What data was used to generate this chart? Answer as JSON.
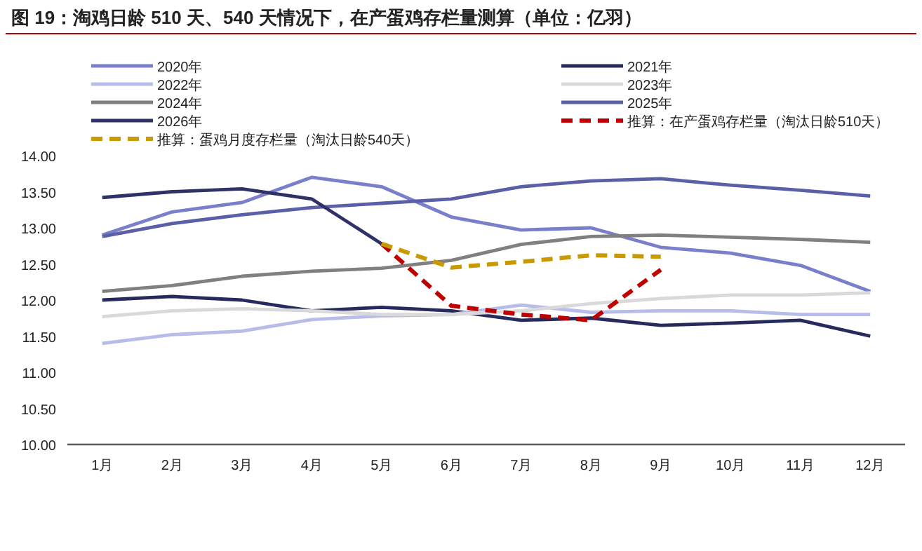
{
  "chart_data": {
    "type": "line",
    "title": "图 19：淘鸡日龄 510 天、540 天情况下，在产蛋鸡存栏量测算（单位：亿羽）",
    "categories": [
      "1月",
      "2月",
      "3月",
      "4月",
      "5月",
      "6月",
      "7月",
      "8月",
      "9月",
      "10月",
      "11月",
      "12月"
    ],
    "ylim": [
      10,
      14
    ],
    "yticks": [
      {
        "value": 10,
        "label": "10.00"
      },
      {
        "value": 10.5,
        "label": "10.50"
      },
      {
        "value": 11,
        "label": "11.00"
      },
      {
        "value": 11.5,
        "label": "11.50"
      },
      {
        "value": 12,
        "label": "12.00"
      },
      {
        "value": 12.5,
        "label": "12.50"
      },
      {
        "value": 13,
        "label": "13.00"
      },
      {
        "value": 13.5,
        "label": "13.50"
      },
      {
        "value": 14,
        "label": "14.00"
      }
    ],
    "grid": false,
    "legend": "top",
    "marker": "none",
    "series": [
      {
        "name": "2020年",
        "color": "#7a7fcc",
        "values": [
          12.9,
          13.22,
          13.35,
          13.7,
          13.57,
          13.15,
          12.97,
          13.0,
          12.73,
          12.65,
          12.48,
          12.12
        ]
      },
      {
        "name": "2021年",
        "color": "#262a5c",
        "values": [
          12.0,
          12.05,
          12.0,
          11.85,
          11.9,
          11.85,
          11.72,
          11.75,
          11.65,
          11.68,
          11.72,
          11.5
        ]
      },
      {
        "name": "2022年",
        "color": "#b8bce8",
        "values": [
          11.4,
          11.52,
          11.57,
          11.73,
          11.78,
          11.8,
          11.93,
          11.83,
          11.85,
          11.85,
          11.8,
          11.8
        ]
      },
      {
        "name": "2023年",
        "color": "#d9d9d9",
        "values": [
          11.77,
          11.85,
          11.88,
          11.85,
          11.8,
          11.8,
          11.85,
          11.95,
          12.02,
          12.07,
          12.07,
          12.1
        ]
      },
      {
        "name": "2024年",
        "color": "#808080",
        "values": [
          12.12,
          12.2,
          12.33,
          12.4,
          12.44,
          12.55,
          12.77,
          12.88,
          12.9,
          12.87,
          12.84,
          12.8
        ]
      },
      {
        "name": "2025年",
        "color": "#5a5fa8",
        "values": [
          12.88,
          13.06,
          13.18,
          13.28,
          13.34,
          13.4,
          13.57,
          13.65,
          13.68,
          13.59,
          13.52,
          13.44
        ]
      },
      {
        "name": "2026年",
        "color": "#2e3266",
        "values": [
          13.42,
          13.5,
          13.54,
          13.4,
          12.78,
          null,
          null,
          null,
          null,
          null,
          null,
          null
        ]
      },
      {
        "name": "推算：在产蛋鸡存栏量（淘汰日龄510天）",
        "color": "#c00000",
        "line_style": "dashed",
        "values": [
          null,
          null,
          null,
          null,
          12.78,
          11.92,
          11.8,
          11.72,
          12.42,
          null,
          null,
          null
        ]
      },
      {
        "name": "推算：蛋鸡月度存栏量（淘汰日龄540天）",
        "color": "#c89a00",
        "line_style": "dashed",
        "values": [
          null,
          null,
          null,
          null,
          12.78,
          12.45,
          12.53,
          12.62,
          12.6,
          null,
          null,
          null
        ]
      }
    ]
  }
}
